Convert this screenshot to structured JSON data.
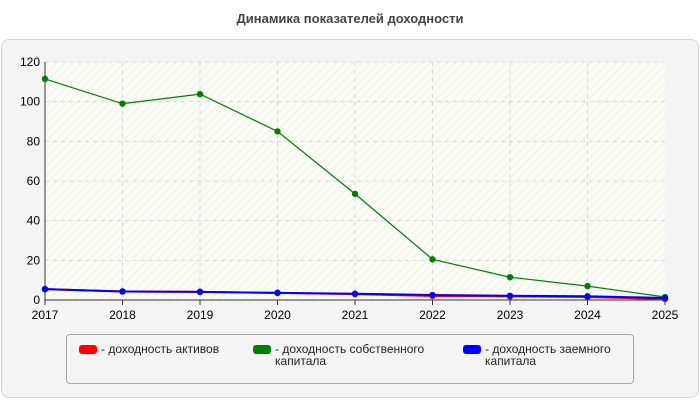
{
  "chart_data": {
    "type": "line",
    "title": "Динамика показателей доходности",
    "categories": [
      "2017",
      "2018",
      "2019",
      "2020",
      "2021",
      "2022",
      "2023",
      "2024",
      "2025"
    ],
    "ylim": [
      0,
      120
    ],
    "yticks": [
      0,
      20,
      40,
      60,
      80,
      100,
      120
    ],
    "grid": true,
    "legend_position": "bottom",
    "series": [
      {
        "name": "- доходность активов",
        "color": "#ff0000",
        "values": [
          5.5,
          4.3,
          4.1,
          3.6,
          3.0,
          2.0,
          1.8,
          1.5,
          0.5
        ]
      },
      {
        "name": "- доходность собственного капитала",
        "color": "#008000",
        "values": [
          111.5,
          99.0,
          103.8,
          85.0,
          53.5,
          20.5,
          11.5,
          7.0,
          1.5
        ]
      },
      {
        "name": "- доходность заемного капитала",
        "color": "#0000ff",
        "values": [
          5.5,
          4.3,
          4.1,
          3.6,
          3.2,
          2.5,
          2.1,
          1.9,
          1.0
        ]
      }
    ]
  }
}
